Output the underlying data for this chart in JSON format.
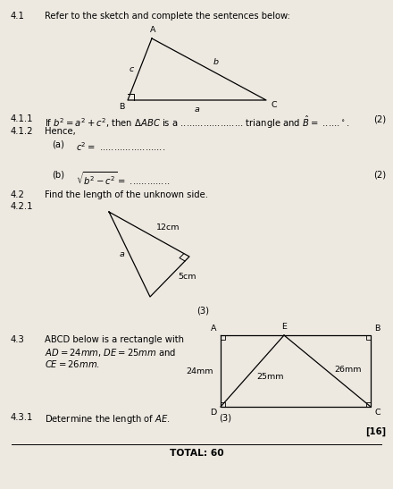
{
  "bg_color": "#ede9e1",
  "text_41": "Refer to the sketch and complete the sentences below:",
  "text_411": "If $b^2 = a^2 + c^2$, then $\\Delta ABC$ is a ...................... triangle and $\\hat{B} =$ ......$^\\circ$.",
  "mark_411": "(2)",
  "text_412": "Hence,",
  "text_412a_label": "(a)",
  "text_412a": "$c^2 =$ .......................",
  "text_412b_label": "(b)",
  "text_412b": "$\\sqrt{b^2 - c^2} =$ ..............",
  "mark_412": "(2)",
  "text_42": "Find the length of the unknown side.",
  "mark_421": "(3)",
  "text_43_l1": "ABCD below is a rectangle with",
  "text_43_l2": "$AD = 24mm$, $DE = 25mm$ and",
  "text_43_l3": "$CE = 26mm$.",
  "text_431": "Determine the length of $AE$.",
  "mark_431": "(3)",
  "mark_16": "[16]",
  "total": "TOTAL: 60",
  "label_24mm": "24mm",
  "label_25mm": "25mm",
  "label_26mm": "26mm"
}
